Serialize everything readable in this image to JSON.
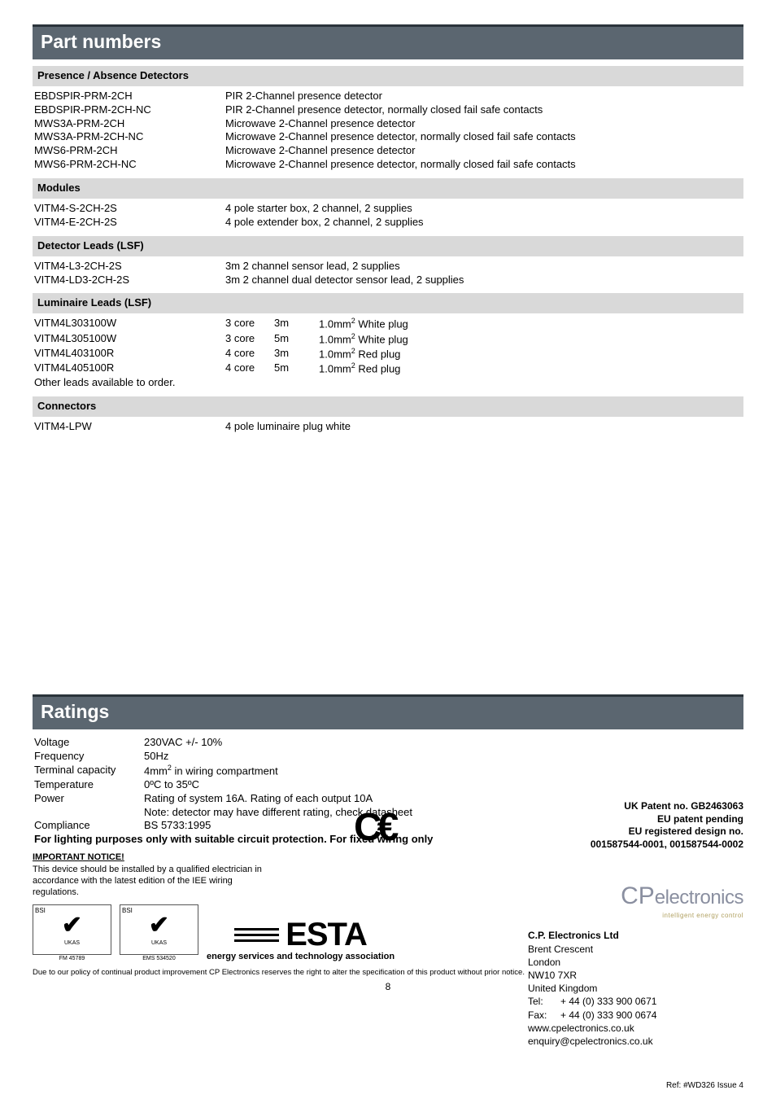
{
  "banner1": "Part numbers",
  "sh1": "Presence / Absence Detectors",
  "pa": [
    {
      "pn": "EBDSPIR-PRM-2CH",
      "desc": "PIR 2-Channel presence detector"
    },
    {
      "pn": "EBDSPIR-PRM-2CH-NC",
      "desc": "PIR 2-Channel presence detector,  normally closed fail safe contacts"
    },
    {
      "pn": "MWS3A-PRM-2CH",
      "desc": "Microwave 2-Channel presence detector"
    },
    {
      "pn": "MWS3A-PRM-2CH-NC",
      "desc": "Microwave 2-Channel presence detector, normally closed fail safe contacts"
    },
    {
      "pn": "MWS6-PRM-2CH",
      "desc": "Microwave 2-Channel presence detector"
    },
    {
      "pn": "MWS6-PRM-2CH-NC",
      "desc": "Microwave 2-Channel presence detector, normally closed fail safe contacts"
    }
  ],
  "sh2": "Modules",
  "mod": [
    {
      "pn": "VITM4-S-2CH-2S",
      "desc": "4 pole starter box, 2 channel, 2 supplies"
    },
    {
      "pn": "VITM4-E-2CH-2S",
      "desc": "4 pole extender box, 2 channel, 2 supplies"
    }
  ],
  "sh3": "Detector Leads (LSF)",
  "dl": [
    {
      "pn": "VITM4-L3-2CH-2S",
      "desc": "3m  2 channel sensor lead, 2 supplies"
    },
    {
      "pn": "VITM4-LD3-2CH-2S",
      "desc": "3m  2 channel dual detector sensor lead, 2 supplies"
    }
  ],
  "sh4": "Luminaire Leads (LSF)",
  "lum": [
    {
      "pn": "VITM4L303100W",
      "core": "3 core",
      "len": "3m",
      "d": "1.0mm",
      "suf": " White plug"
    },
    {
      "pn": "VITM4L305100W",
      "core": "3 core",
      "len": "5m",
      "d": "1.0mm",
      "suf": " White plug"
    },
    {
      "pn": "VITM4L403100R",
      "core": "4 core",
      "len": "3m",
      "d": "1.0mm",
      "suf": " Red plug"
    },
    {
      "pn": "VITM4L405100R",
      "core": "4 core",
      "len": "5m",
      "d": "1.0mm",
      "suf": " Red plug"
    }
  ],
  "lum_other": "Other leads available to order.",
  "sh5": "Connectors",
  "con": [
    {
      "pn": "VITM4-LPW",
      "desc": "4 pole luminaire plug white"
    }
  ],
  "banner2": "Ratings",
  "rat": {
    "r1l": "Voltage",
    "r1v": "230VAC +/- 10%",
    "r2l": "Frequency",
    "r2v": "50Hz",
    "r3l": "Terminal capacity",
    "r3v1": "4mm",
    "r3v2": " in wiring compartment",
    "r4l": "Temperature",
    "r4v": "0ºC to 35ºC",
    "r5l": "Power",
    "r5v": "Rating of system 16A. Rating of each output 10A",
    "r5n": "Note: detector may have different rating, check datasheet",
    "r6l": "Compliance",
    "r6v": "BS 5733:1995"
  },
  "warn": "For lighting purposes only with suitable circuit protection. For fixed wiring only",
  "notice": {
    "t": "IMPORTANT NOTICE!",
    "body": "This device should be installed by a qualified electrician in accordance with the latest edition of the IEE wiring regulations."
  },
  "logo_refs": {
    "l1": "FM 45789",
    "l2": "EMS 534520"
  },
  "esta": "ESTA",
  "esta_tag": "energy services and technology association",
  "ce": "C€",
  "patents": {
    "l1": "UK Patent no. GB2463063",
    "l2": "EU patent pending",
    "l3": "EU registered design no.",
    "l4": "001587544-0001, 001587544-0002"
  },
  "brand": {
    "cp": "CP",
    "el": "electronics",
    "sub": "intelligent energy control"
  },
  "addr": {
    "co": "C.P. Electronics Ltd",
    "a1": "Brent Crescent",
    "a2": "London",
    "a3": "NW10 7XR",
    "a4": "United Kingdom",
    "tel_l": "Tel:",
    "tel_v": "+ 44 (0) 333 900 0671",
    "fax_l": "Fax:",
    "fax_v": "+ 44 (0) 333 900 0674",
    "web": "www.cpelectronics.co.uk",
    "em": "enquiry@cpelectronics.co.uk"
  },
  "disclaimer": "Due to our policy of continual product improvement CP Electronics reserves the right to alter the specification of this product without prior notice.",
  "pg": "8",
  "ref": "Ref: #WD326 Issue 4",
  "ukas": "UKAS",
  "bsi": "BSI"
}
